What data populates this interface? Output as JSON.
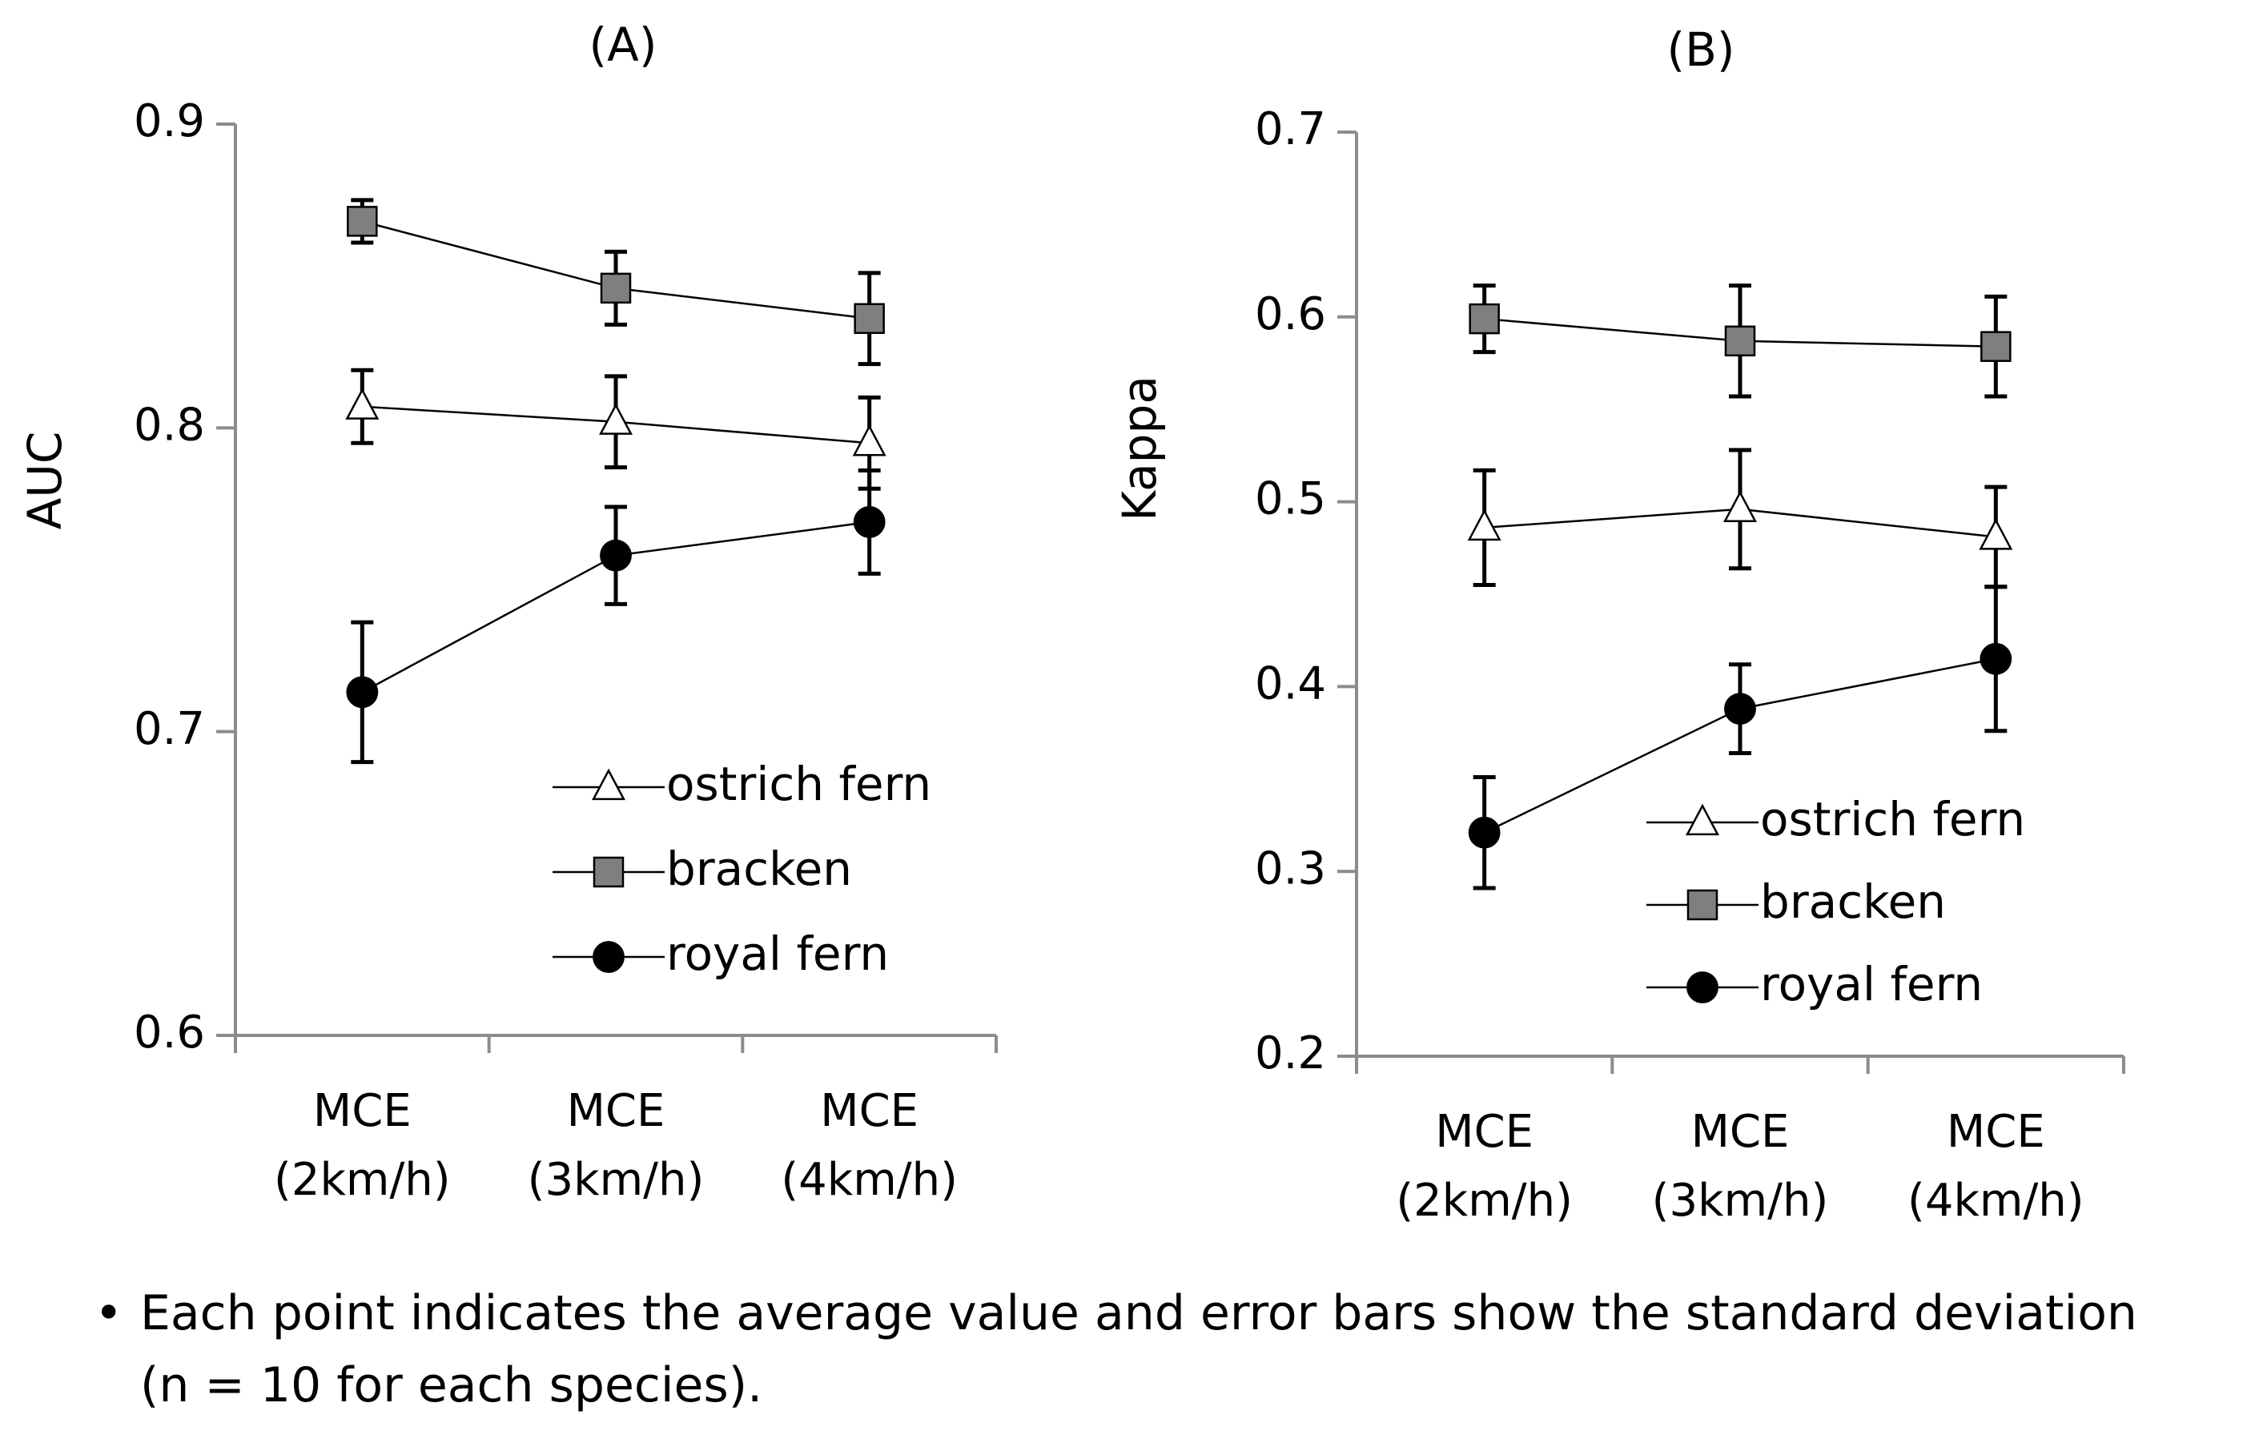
{
  "chart_data": [
    {
      "type": "line",
      "title": "(A)",
      "xlabel": "",
      "ylabel": "AUC",
      "ylim": [
        0.6,
        0.9
      ],
      "yticks": [
        "0.6",
        "0.7",
        "0.8",
        "0.9"
      ],
      "yticks_values": [
        0.6,
        0.7,
        0.8,
        0.9
      ],
      "categories": [
        [
          "MCE",
          "(2km/h)"
        ],
        [
          "MCE",
          "(3km/h)"
        ],
        [
          "MCE",
          "(4km/h)"
        ]
      ],
      "legend_position": "bottom-right",
      "series": [
        {
          "name": "ostrich fern",
          "marker": "triangle",
          "values": [
            0.807,
            0.802,
            0.795
          ],
          "errors": [
            0.012,
            0.015,
            0.015
          ]
        },
        {
          "name": "bracken",
          "marker": "square",
          "values": [
            0.868,
            0.846,
            0.836
          ],
          "errors": [
            0.007,
            0.012,
            0.015
          ]
        },
        {
          "name": "royal fern",
          "marker": "circle",
          "values": [
            0.713,
            0.758,
            0.769
          ],
          "errors": [
            0.023,
            0.016,
            0.017
          ]
        }
      ]
    },
    {
      "type": "line",
      "title": "(B)",
      "xlabel": "",
      "ylabel": "Kappa",
      "ylim": [
        0.2,
        0.7
      ],
      "yticks": [
        "0.2",
        "0.3",
        "0.4",
        "0.5",
        "0.6",
        "0.7"
      ],
      "yticks_values": [
        0.2,
        0.3,
        0.4,
        0.5,
        0.6,
        0.7
      ],
      "categories": [
        [
          "MCE",
          "(2km/h)"
        ],
        [
          "MCE",
          "(3km/h)"
        ],
        [
          "MCE",
          "(4km/h)"
        ]
      ],
      "legend_position": "bottom-right",
      "series": [
        {
          "name": "ostrich fern",
          "marker": "triangle",
          "values": [
            0.486,
            0.496,
            0.481
          ],
          "errors": [
            0.031,
            0.032,
            0.027
          ]
        },
        {
          "name": "bracken",
          "marker": "square",
          "values": [
            0.599,
            0.587,
            0.584
          ],
          "errors": [
            0.018,
            0.03,
            0.027
          ]
        },
        {
          "name": "royal fern",
          "marker": "circle",
          "values": [
            0.321,
            0.388,
            0.415
          ],
          "errors": [
            0.03,
            0.024,
            0.039
          ]
        }
      ]
    }
  ],
  "colors": {
    "axis": "#8c8c8c",
    "line": "#000000",
    "triangle_fill": "#ffffff",
    "square_fill": "#7f7f7f",
    "circle_fill": "#000000"
  },
  "footnote": {
    "bullet": "•",
    "line1": "Each point indicates the average value and error bars show the standard deviation",
    "line2": "(n = 10 for each species)."
  }
}
